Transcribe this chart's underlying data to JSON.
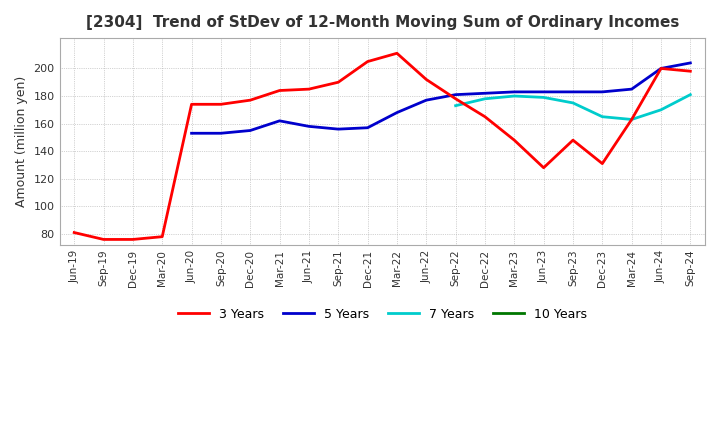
{
  "title": "[2304]  Trend of StDev of 12-Month Moving Sum of Ordinary Incomes",
  "ylabel": "Amount (million yen)",
  "ylim": [
    72,
    222
  ],
  "yticks": [
    80,
    100,
    120,
    140,
    160,
    180,
    200
  ],
  "line_colors": {
    "3y": "#ff0000",
    "5y": "#0000cc",
    "7y": "#00cccc",
    "10y": "#007700"
  },
  "x_labels": [
    "Jun-19",
    "Sep-19",
    "Dec-19",
    "Mar-20",
    "Jun-20",
    "Sep-20",
    "Dec-20",
    "Mar-21",
    "Jun-21",
    "Sep-21",
    "Dec-21",
    "Mar-22",
    "Jun-22",
    "Sep-22",
    "Dec-22",
    "Mar-23",
    "Jun-23",
    "Sep-23",
    "Dec-23",
    "Mar-24",
    "Jun-24",
    "Sep-24"
  ],
  "data_3y": [
    81,
    76,
    76,
    78,
    174,
    174,
    177,
    184,
    185,
    190,
    205,
    211,
    192,
    178,
    165,
    148,
    128,
    148,
    131,
    163,
    200,
    198
  ],
  "data_5y": [
    null,
    null,
    null,
    null,
    153,
    153,
    155,
    162,
    158,
    156,
    157,
    168,
    177,
    181,
    182,
    183,
    183,
    183,
    183,
    185,
    200,
    204
  ],
  "data_7y": [
    null,
    null,
    null,
    null,
    null,
    null,
    null,
    null,
    null,
    null,
    null,
    null,
    null,
    173,
    178,
    180,
    179,
    175,
    165,
    163,
    170,
    181
  ],
  "data_10y": [
    null,
    null,
    null,
    null,
    null,
    null,
    null,
    null,
    null,
    null,
    null,
    null,
    null,
    null,
    null,
    null,
    null,
    null,
    null,
    null,
    null,
    null
  ],
  "background_color": "#ffffff",
  "grid_color": "#aaaaaa",
  "linewidth": 2.0
}
